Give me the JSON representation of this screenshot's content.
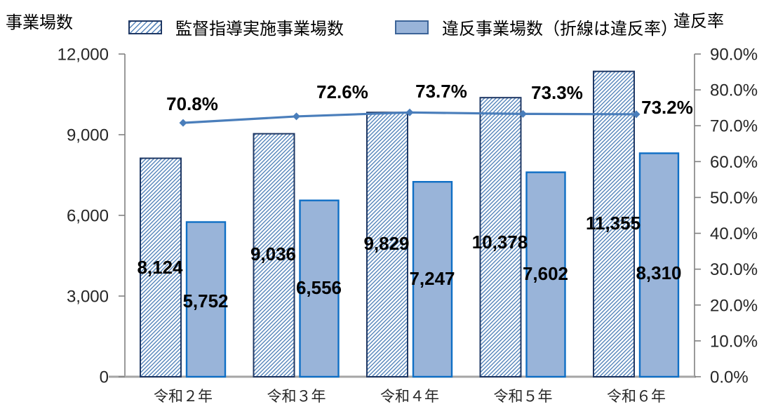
{
  "legend": [
    {
      "label": "監督指導実施事業場数",
      "swatch": "hatched"
    },
    {
      "label": "違反事業場数（折線は違反率）",
      "swatch": "solid"
    }
  ],
  "chart_data": {
    "type": "bar+line",
    "categories": [
      "令和２年",
      "令和３年",
      "令和４年",
      "令和５年",
      "令和６年"
    ],
    "series": [
      {
        "name": "監督指導実施事業場数",
        "type": "bar",
        "style": "hatched",
        "axis": "left",
        "values": [
          8124,
          9036,
          9829,
          10378,
          11355
        ],
        "labels": [
          "8,124",
          "9,036",
          "9,829",
          "10,378",
          "11,355"
        ]
      },
      {
        "name": "違反事業場数",
        "type": "bar",
        "style": "solid",
        "axis": "left",
        "values": [
          5752,
          6556,
          7247,
          7602,
          8310
        ],
        "labels": [
          "5,752",
          "6,556",
          "7,247",
          "7,602",
          "8,310"
        ]
      },
      {
        "name": "違反率",
        "type": "line",
        "axis": "right",
        "values": [
          70.8,
          72.6,
          73.7,
          73.3,
          73.2
        ],
        "labels": [
          "70.8%",
          "72.6%",
          "73.7%",
          "73.3%",
          "73.2%"
        ]
      }
    ],
    "left_axis": {
      "title": "事業場数",
      "min": 0,
      "max": 12000,
      "step": 3000,
      "ticks": [
        "0",
        "3,000",
        "6,000",
        "9,000",
        "12,000"
      ]
    },
    "right_axis": {
      "title": "違反率",
      "min": 0,
      "max": 90,
      "step": 10,
      "ticks": [
        "0.0%",
        "10.0%",
        "20.0%",
        "30.0%",
        "40.0%",
        "50.0%",
        "60.0%",
        "70.0%",
        "80.0%",
        "90.0%"
      ]
    },
    "grid": false,
    "legend_position": "top",
    "colors": {
      "bar_solid_fill": "#99b4d9",
      "bar_solid_border": "#0f6fc5",
      "bar_hatch_line": "#5585bb",
      "bar_hatch_border": "#1f3864",
      "line": "#4a7ebb",
      "axis_line": "#808080",
      "baseline": "#a6a6a6",
      "text": "#000000"
    }
  }
}
